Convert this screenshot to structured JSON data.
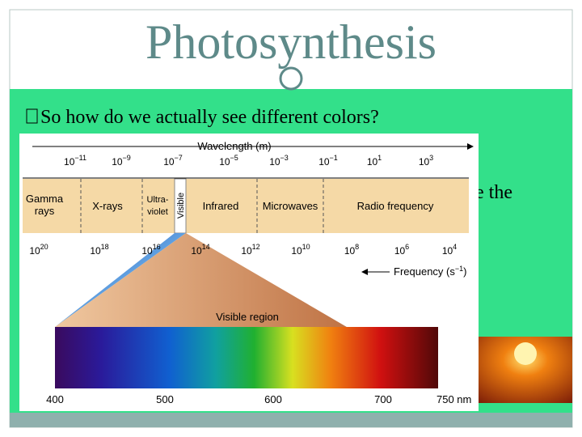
{
  "slide": {
    "title": "Photosynthesis",
    "bullet": "So how do we actually see different colors?",
    "hidden_text": "e the"
  },
  "spectrum": {
    "wavelength_label": "Wavelength (m)",
    "wavelength_ticks": [
      {
        "base": "10",
        "exp": "−11"
      },
      {
        "base": "10",
        "exp": "−9"
      },
      {
        "base": "10",
        "exp": "−7"
      },
      {
        "base": "10",
        "exp": "−5"
      },
      {
        "base": "10",
        "exp": "−3"
      },
      {
        "base": "10",
        "exp": "−1"
      },
      {
        "base": "10",
        "exp": "1"
      },
      {
        "base": "10",
        "exp": "3"
      }
    ],
    "regions": [
      [
        "Gamma",
        "rays"
      ],
      [
        "X-rays"
      ],
      [
        "Ultra-",
        "violet"
      ],
      [
        "Visible"
      ],
      [
        "Infrared"
      ],
      [
        "Microwaves"
      ],
      [
        "Radio frequency"
      ]
    ],
    "frequency_ticks": [
      {
        "base": "10",
        "exp": "20"
      },
      {
        "base": "10",
        "exp": "18"
      },
      {
        "base": "10",
        "exp": "16"
      },
      {
        "base": "10",
        "exp": "14"
      },
      {
        "base": "10",
        "exp": "12"
      },
      {
        "base": "10",
        "exp": "10"
      },
      {
        "base": "10",
        "exp": "8"
      },
      {
        "base": "10",
        "exp": "6"
      },
      {
        "base": "10",
        "exp": "4"
      }
    ],
    "frequency_label": {
      "text": "Frequency (s",
      "exp": "−1",
      "close": ")"
    },
    "visible_label": "Visible region",
    "nm_ticks": [
      "400",
      "500",
      "600",
      "700",
      "750 nm"
    ]
  }
}
